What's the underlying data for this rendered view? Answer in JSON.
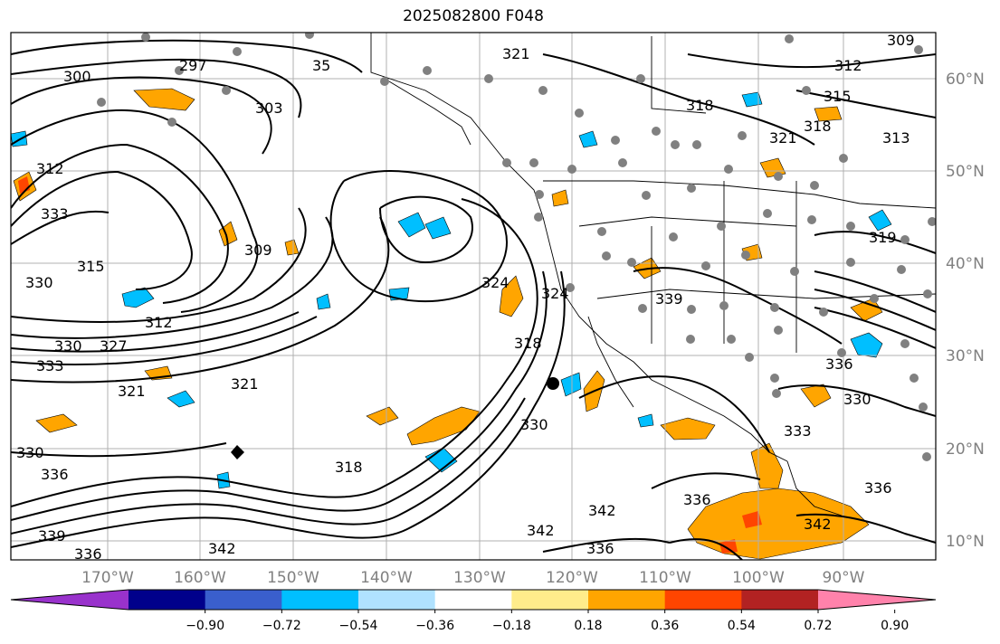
{
  "title": "2025082800 F048",
  "map": {
    "lon_labels": [
      "170°W",
      "160°W",
      "150°W",
      "140°W",
      "130°W",
      "120°W",
      "110°W",
      "100°W",
      "90°W"
    ],
    "lat_labels": [
      "60°N",
      "50°N",
      "40°N",
      "30°N",
      "20°N",
      "10°N"
    ],
    "contour_labels": [
      "300",
      "297",
      "303",
      "312",
      "333",
      "330",
      "315",
      "309",
      "312",
      "330",
      "327",
      "333",
      "321",
      "321",
      "318",
      "324",
      "324",
      "318",
      "330",
      "339",
      "342",
      "336",
      "330",
      "336",
      "339",
      "336",
      "342",
      "342",
      "336",
      "342",
      "333",
      "330",
      "336",
      "336",
      "318",
      "321",
      "318",
      "315",
      "309",
      "312",
      "321",
      "313",
      "319",
      "35"
    ],
    "colors": {
      "land_border": "#000000",
      "grid": "#b0b0b0",
      "contour": "#000000",
      "positive_fill": "#ffa500",
      "negative_fill": "#00bfff"
    }
  },
  "colorbar": {
    "tick_labels": [
      "−0.90",
      "−0.72",
      "−0.54",
      "−0.36",
      "−0.18",
      "0.18",
      "0.36",
      "0.54",
      "0.72",
      "0.90"
    ],
    "colors": [
      "#9932cc",
      "#00008b",
      "#3a5fcd",
      "#00bfff",
      "#b0e2ff",
      "#ffffff",
      "#ffec8b",
      "#ffa500",
      "#ff4500",
      "#b22222",
      "#ff82ab"
    ]
  }
}
